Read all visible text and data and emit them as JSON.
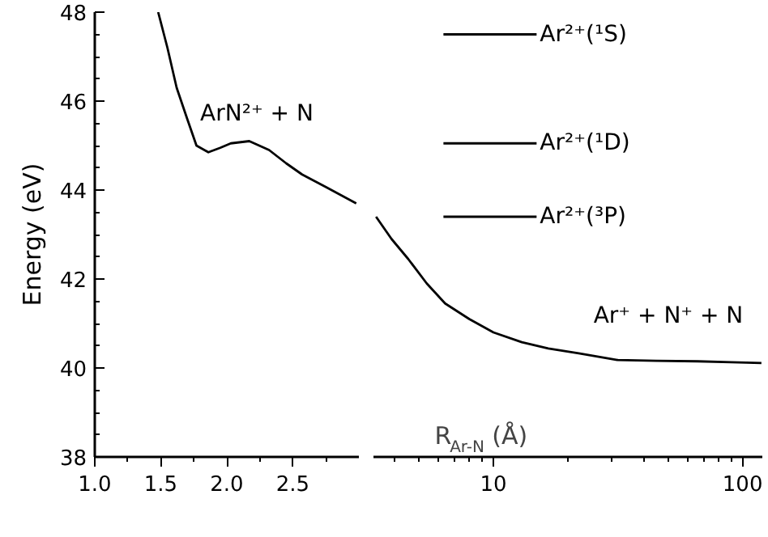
{
  "chart_data": [
    {
      "type": "line",
      "ylabel": "Energy (eV)",
      "xlim": [
        1.0,
        3.0
      ],
      "ylim": [
        38,
        48
      ],
      "xticks": [
        {
          "value": 1,
          "label": "1.0"
        },
        {
          "value": 1.5,
          "label": "1.5"
        },
        {
          "value": 2,
          "label": "2.0"
        },
        {
          "value": 2.5,
          "label": "2.5"
        }
      ],
      "yticks": [
        38,
        40,
        42,
        44,
        46,
        48
      ],
      "annotations": [
        "ArN²⁺ + N"
      ],
      "series": [
        {
          "color": "#000000",
          "x": [
            1.48,
            1.55,
            1.62,
            1.7,
            1.77,
            1.86,
            1.95,
            2.03,
            2.17,
            2.32,
            2.45,
            2.57,
            2.75,
            2.98
          ],
          "values": [
            48,
            47.2,
            46.3,
            45.6,
            45.0,
            44.85,
            44.95,
            45.05,
            45.1,
            44.9,
            44.6,
            44.35,
            44.07,
            43.7
          ]
        }
      ]
    },
    {
      "type": "line",
      "xlabel": "R$_{Ar-N}$ (Å)",
      "log": "x",
      "xlim": [
        3.3,
        120
      ],
      "ylim": [
        38,
        48
      ],
      "xticks": [
        10,
        100
      ],
      "yticks": [
        38,
        40,
        42,
        44,
        46,
        48
      ],
      "tick_labels": "x",
      "annotations": [
        "Ar⁺ + N⁺ + N"
      ],
      "series": [
        {
          "color": "#000000",
          "x": [
            3.38,
            3.9,
            4.55,
            5.4,
            6.4,
            8,
            10,
            13,
            16.6,
            22,
            31.4,
            45,
            65.9,
            90,
            119
          ],
          "values": [
            43.4,
            42.9,
            42.45,
            41.9,
            41.45,
            41.1,
            40.8,
            40.58,
            40.44,
            40.33,
            40.18,
            40.16,
            40.15,
            40.13,
            40.11
          ]
        },
        {
          "name": "Ar²⁺(¹S)",
          "color": "#000000",
          "x": [
            6.3,
            14.9
          ],
          "values": [
            47.5,
            47.5
          ]
        },
        {
          "name": "Ar²⁺(¹D)",
          "color": "#000000",
          "x": [
            6.3,
            14.9
          ],
          "values": [
            45.05,
            45.05
          ]
        },
        {
          "name": "Ar²⁺(³P)",
          "color": "#000000",
          "x": [
            6.3,
            14.9
          ],
          "values": [
            43.4,
            43.4
          ]
        }
      ]
    }
  ]
}
